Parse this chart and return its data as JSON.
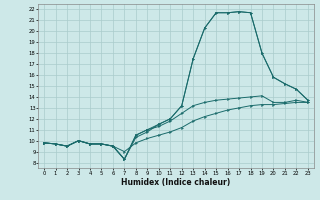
{
  "xlabel": "Humidex (Indice chaleur)",
  "bg_color": "#cde8e8",
  "grid_color": "#aacccc",
  "line_color": "#1a6b6b",
  "xlim": [
    -0.5,
    23.5
  ],
  "ylim": [
    7.5,
    22.5
  ],
  "xticks": [
    0,
    1,
    2,
    3,
    4,
    5,
    6,
    7,
    8,
    9,
    10,
    11,
    12,
    13,
    14,
    15,
    16,
    17,
    18,
    19,
    20,
    21,
    22,
    23
  ],
  "yticks": [
    8,
    9,
    10,
    11,
    12,
    13,
    14,
    15,
    16,
    17,
    18,
    19,
    20,
    21,
    22
  ],
  "line1_x": [
    0,
    1,
    2,
    3,
    4,
    5,
    6,
    7,
    8,
    9,
    10,
    11,
    12,
    13,
    14,
    15,
    16,
    17,
    18,
    19,
    20,
    21,
    22,
    23
  ],
  "line1_y": [
    9.8,
    9.7,
    9.5,
    10.0,
    9.7,
    9.7,
    9.5,
    8.3,
    10.5,
    11.0,
    11.5,
    12.0,
    13.2,
    17.5,
    20.3,
    21.7,
    21.7,
    21.8,
    21.7,
    18.0,
    15.8,
    15.2,
    14.7,
    13.7
  ],
  "line2_x": [
    0,
    1,
    2,
    3,
    4,
    5,
    6,
    7,
    8,
    9,
    10,
    11,
    12,
    13,
    14,
    15,
    16,
    17,
    18,
    19,
    20,
    21,
    22,
    23
  ],
  "line2_y": [
    9.8,
    9.7,
    9.5,
    10.0,
    9.7,
    9.7,
    9.5,
    8.3,
    10.5,
    11.0,
    11.3,
    11.8,
    12.5,
    13.2,
    13.5,
    13.7,
    13.8,
    13.9,
    14.0,
    14.1,
    13.5,
    13.5,
    13.7,
    13.5
  ],
  "line3_x": [
    0,
    1,
    2,
    3,
    4,
    5,
    6,
    7,
    8,
    9,
    10,
    11,
    12,
    13,
    14,
    15,
    16,
    17,
    18,
    19,
    20,
    21,
    22,
    23
  ],
  "line3_y": [
    9.8,
    9.7,
    9.5,
    10.0,
    9.7,
    9.7,
    9.5,
    8.3,
    10.3,
    10.8,
    11.5,
    12.0,
    13.2,
    17.5,
    20.3,
    21.7,
    21.7,
    21.8,
    21.7,
    18.0,
    15.8,
    15.2,
    14.7,
    13.7
  ],
  "line4_x": [
    0,
    1,
    2,
    3,
    4,
    5,
    6,
    7,
    8,
    9,
    10,
    11,
    12,
    13,
    14,
    15,
    16,
    17,
    18,
    19,
    20,
    21,
    22,
    23
  ],
  "line4_y": [
    9.8,
    9.7,
    9.5,
    10.0,
    9.7,
    9.7,
    9.5,
    9.0,
    9.8,
    10.2,
    10.5,
    10.8,
    11.2,
    11.8,
    12.2,
    12.5,
    12.8,
    13.0,
    13.2,
    13.3,
    13.3,
    13.4,
    13.5,
    13.5
  ]
}
